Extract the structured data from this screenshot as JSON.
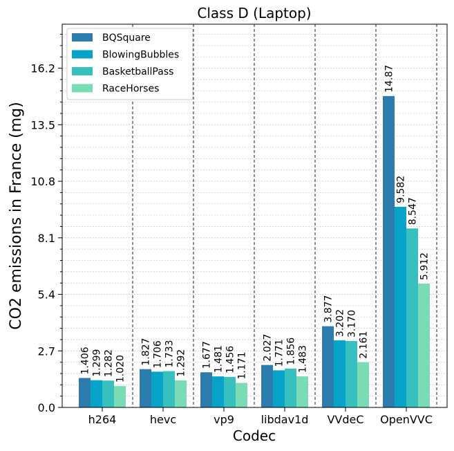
{
  "chart_data": {
    "type": "bar",
    "title": "Class D (Laptop)",
    "xlabel": "Codec",
    "ylabel": "CO2 emissions in France (mg)",
    "categories": [
      "h264",
      "hevc",
      "vp9",
      "libdav1d",
      "VVdeC",
      "OpenVVC"
    ],
    "series": [
      {
        "name": "BQSquare",
        "color": "#2b7bad",
        "values": [
          1.406,
          1.827,
          1.677,
          2.027,
          3.877,
          14.87
        ],
        "labels": [
          "1.406",
          "1.827",
          "1.677",
          "2.027",
          "3.877",
          "14.87"
        ]
      },
      {
        "name": "BlowingBubbles",
        "color": "#06a2c8",
        "values": [
          1.299,
          1.706,
          1.481,
          1.771,
          3.202,
          9.582
        ],
        "labels": [
          "1.299",
          "1.706",
          "1.481",
          "1.771",
          "3.202",
          "9.582"
        ]
      },
      {
        "name": "BasketballPass",
        "color": "#38c0bf",
        "values": [
          1.282,
          1.733,
          1.456,
          1.856,
          3.17,
          8.547
        ],
        "labels": [
          "1.282",
          "1.733",
          "1.456",
          "1.856",
          "3.170",
          "8.547"
        ]
      },
      {
        "name": "RaceHorses",
        "color": "#7adcb5",
        "values": [
          1.02,
          1.292,
          1.171,
          1.483,
          2.161,
          5.912
        ],
        "labels": [
          "1.020",
          "1.292",
          "1.171",
          "1.483",
          "2.161",
          "5.912"
        ]
      }
    ],
    "ylim": [
      0,
      18.3
    ],
    "yticks": [
      0.0,
      2.7,
      5.4,
      8.1,
      10.8,
      13.5,
      16.2
    ],
    "ytick_labels": [
      "0.0",
      "2.7",
      "5.4",
      "8.1",
      "10.8",
      "13.5",
      "16.2"
    ],
    "minor_ytick_step": 0.54,
    "grid": "horizontal dotted, major and minor",
    "category_separators": "dashed vertical lines between categories",
    "legend_position": "top-left"
  }
}
